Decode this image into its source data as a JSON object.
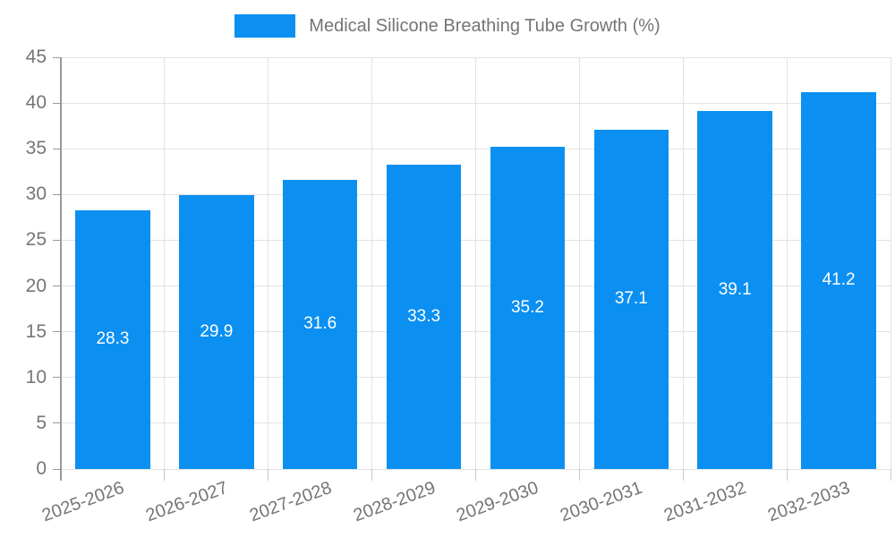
{
  "chart_data": {
    "type": "bar",
    "title": "Medical Silicone Breathing Tube Growth (%)",
    "categories": [
      "2025-2026",
      "2026-2027",
      "2027-2028",
      "2028-2029",
      "2029-2030",
      "2030-2031",
      "2031-2032",
      "2032-2033"
    ],
    "values": [
      28.3,
      29.9,
      31.6,
      33.3,
      35.2,
      37.1,
      39.1,
      41.2
    ],
    "xlabel": "",
    "ylabel": "",
    "ylim": [
      0,
      45
    ],
    "ytick_step": 5,
    "yticks": [
      0,
      5,
      10,
      15,
      20,
      25,
      30,
      35,
      40,
      45
    ],
    "grid": true,
    "legend_position": "top-center",
    "value_labels": "inside-center",
    "colors": {
      "bar": "#0b90f2",
      "value_label": "#ffffff",
      "axis": "#9a9a9a",
      "grid": "#e2e2e2",
      "text": "#757575",
      "background": "#ffffff"
    }
  }
}
